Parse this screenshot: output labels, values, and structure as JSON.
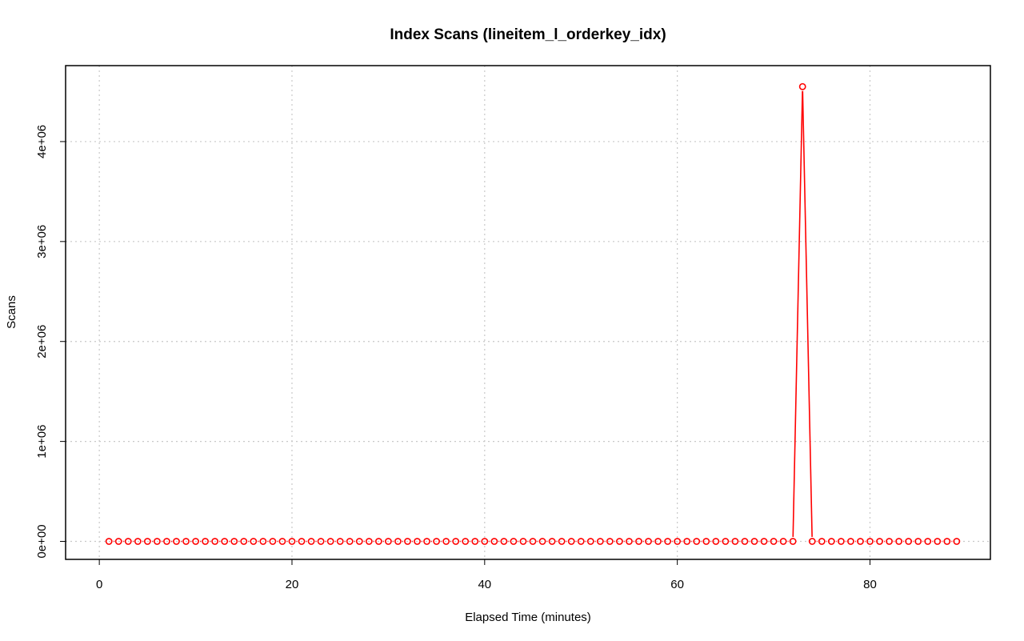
{
  "chart_data": {
    "type": "line",
    "title": "Index Scans (lineitem_l_orderkey_idx)",
    "xlabel": "Elapsed Time (minutes)",
    "ylabel": "Scans",
    "xlim": [
      -3.5,
      92.5
    ],
    "ylim": [
      -180000,
      4760000
    ],
    "x_ticks": [
      0,
      20,
      40,
      60,
      80
    ],
    "x_tick_labels": [
      "0",
      "20",
      "40",
      "60",
      "80"
    ],
    "y_ticks": [
      0,
      1000000,
      2000000,
      3000000,
      4000000
    ],
    "y_tick_labels": [
      "0e+00",
      "1e+06",
      "2e+06",
      "3e+06",
      "4e+06"
    ],
    "grid": true,
    "series": [
      {
        "color": "#ff0000",
        "marker": "open-circle",
        "line_style": "lines between points",
        "x": [
          1,
          2,
          3,
          4,
          5,
          6,
          7,
          8,
          9,
          10,
          11,
          12,
          13,
          14,
          15,
          16,
          17,
          18,
          19,
          20,
          21,
          22,
          23,
          24,
          25,
          26,
          27,
          28,
          29,
          30,
          31,
          32,
          33,
          34,
          35,
          36,
          37,
          38,
          39,
          40,
          41,
          42,
          43,
          44,
          45,
          46,
          47,
          48,
          49,
          50,
          51,
          52,
          53,
          54,
          55,
          56,
          57,
          58,
          59,
          60,
          61,
          62,
          63,
          64,
          65,
          66,
          67,
          68,
          69,
          70,
          71,
          72,
          73,
          74,
          75,
          76,
          77,
          78,
          79,
          80,
          81,
          82,
          83,
          84,
          85,
          86,
          87,
          88,
          89
        ],
        "y": [
          0,
          0,
          0,
          0,
          0,
          0,
          0,
          0,
          0,
          0,
          0,
          0,
          0,
          0,
          0,
          0,
          0,
          0,
          0,
          0,
          0,
          0,
          0,
          0,
          0,
          0,
          0,
          0,
          0,
          0,
          0,
          0,
          0,
          0,
          0,
          0,
          0,
          0,
          0,
          0,
          0,
          0,
          0,
          0,
          0,
          0,
          0,
          0,
          0,
          0,
          0,
          0,
          0,
          0,
          0,
          0,
          0,
          0,
          0,
          0,
          0,
          0,
          0,
          0,
          0,
          0,
          0,
          0,
          0,
          0,
          0,
          0,
          4550000,
          0,
          0,
          0,
          0,
          0,
          0,
          0,
          0,
          0,
          0,
          0,
          0,
          0,
          0,
          0,
          0
        ]
      }
    ]
  }
}
